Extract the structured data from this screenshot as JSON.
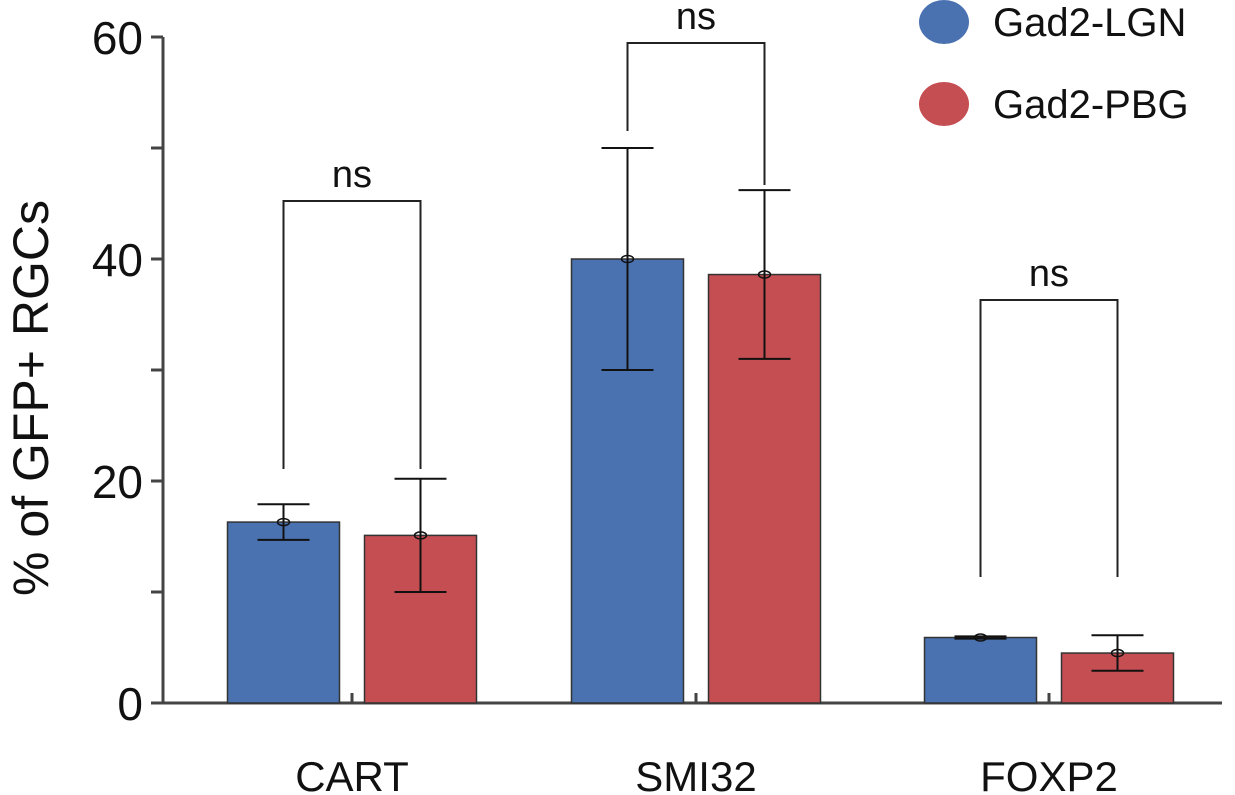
{
  "chart_data": {
    "type": "bar",
    "title": "",
    "xlabel": "",
    "ylabel": "% of GFP+ RGCs",
    "ylim": [
      0,
      60
    ],
    "yticks": [
      0,
      20,
      40,
      60
    ],
    "grid": false,
    "legend_position": "top-right",
    "categories": [
      "CART",
      "SMI32",
      "FOXP2"
    ],
    "series": [
      {
        "name": "Gad2-LGN",
        "color": "#4a72b0",
        "values": [
          16.3,
          40.0,
          5.9
        ],
        "error": [
          1.6,
          10.0,
          0.1
        ]
      },
      {
        "name": "Gad2-PBG",
        "color": "#c44e52",
        "values": [
          15.1,
          38.6,
          4.5
        ],
        "error": [
          5.1,
          7.6,
          1.6
        ]
      }
    ],
    "annotations": [
      {
        "category": "CART",
        "text": "ns"
      },
      {
        "category": "SMI32",
        "text": "ns"
      },
      {
        "category": "FOXP2",
        "text": "ns"
      }
    ]
  }
}
